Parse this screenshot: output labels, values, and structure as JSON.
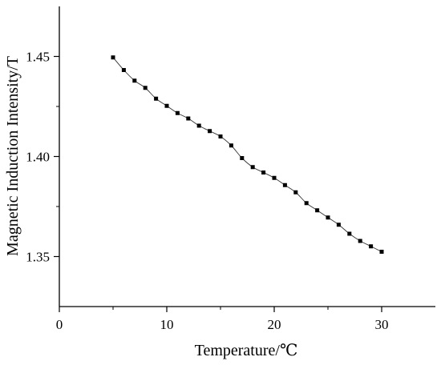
{
  "chart_data": {
    "type": "line",
    "title": "",
    "xlabel": "Temperature/℃",
    "ylabel": "Magnetic Induction Intensity/T",
    "xlim": [
      0,
      35
    ],
    "ylim": [
      1.325,
      1.475
    ],
    "xticks": [
      0,
      10,
      20,
      30
    ],
    "xtick_labels": [
      "0",
      "10",
      "20",
      "30"
    ],
    "yticks": [
      1.35,
      1.4,
      1.45
    ],
    "ytick_labels": [
      "1.35",
      "1.40",
      "1.45"
    ],
    "grid": false,
    "legend": "none",
    "marker": "square",
    "series": [
      {
        "x": [
          5,
          6,
          7,
          8,
          9,
          10,
          11,
          12,
          13,
          14,
          15,
          16,
          17,
          18,
          19,
          20,
          21,
          22,
          23,
          24,
          25,
          26,
          27,
          28,
          29,
          30
        ],
        "values": [
          1.4495,
          1.4432,
          1.4379,
          1.4343,
          1.4289,
          1.4253,
          1.4217,
          1.419,
          1.4154,
          1.4127,
          1.41,
          1.4055,
          1.3992,
          1.3947,
          1.392,
          1.3893,
          1.3857,
          1.3821,
          1.3767,
          1.3731,
          1.3695,
          1.3659,
          1.3614,
          1.3578,
          1.3551,
          1.3524
        ]
      }
    ]
  }
}
